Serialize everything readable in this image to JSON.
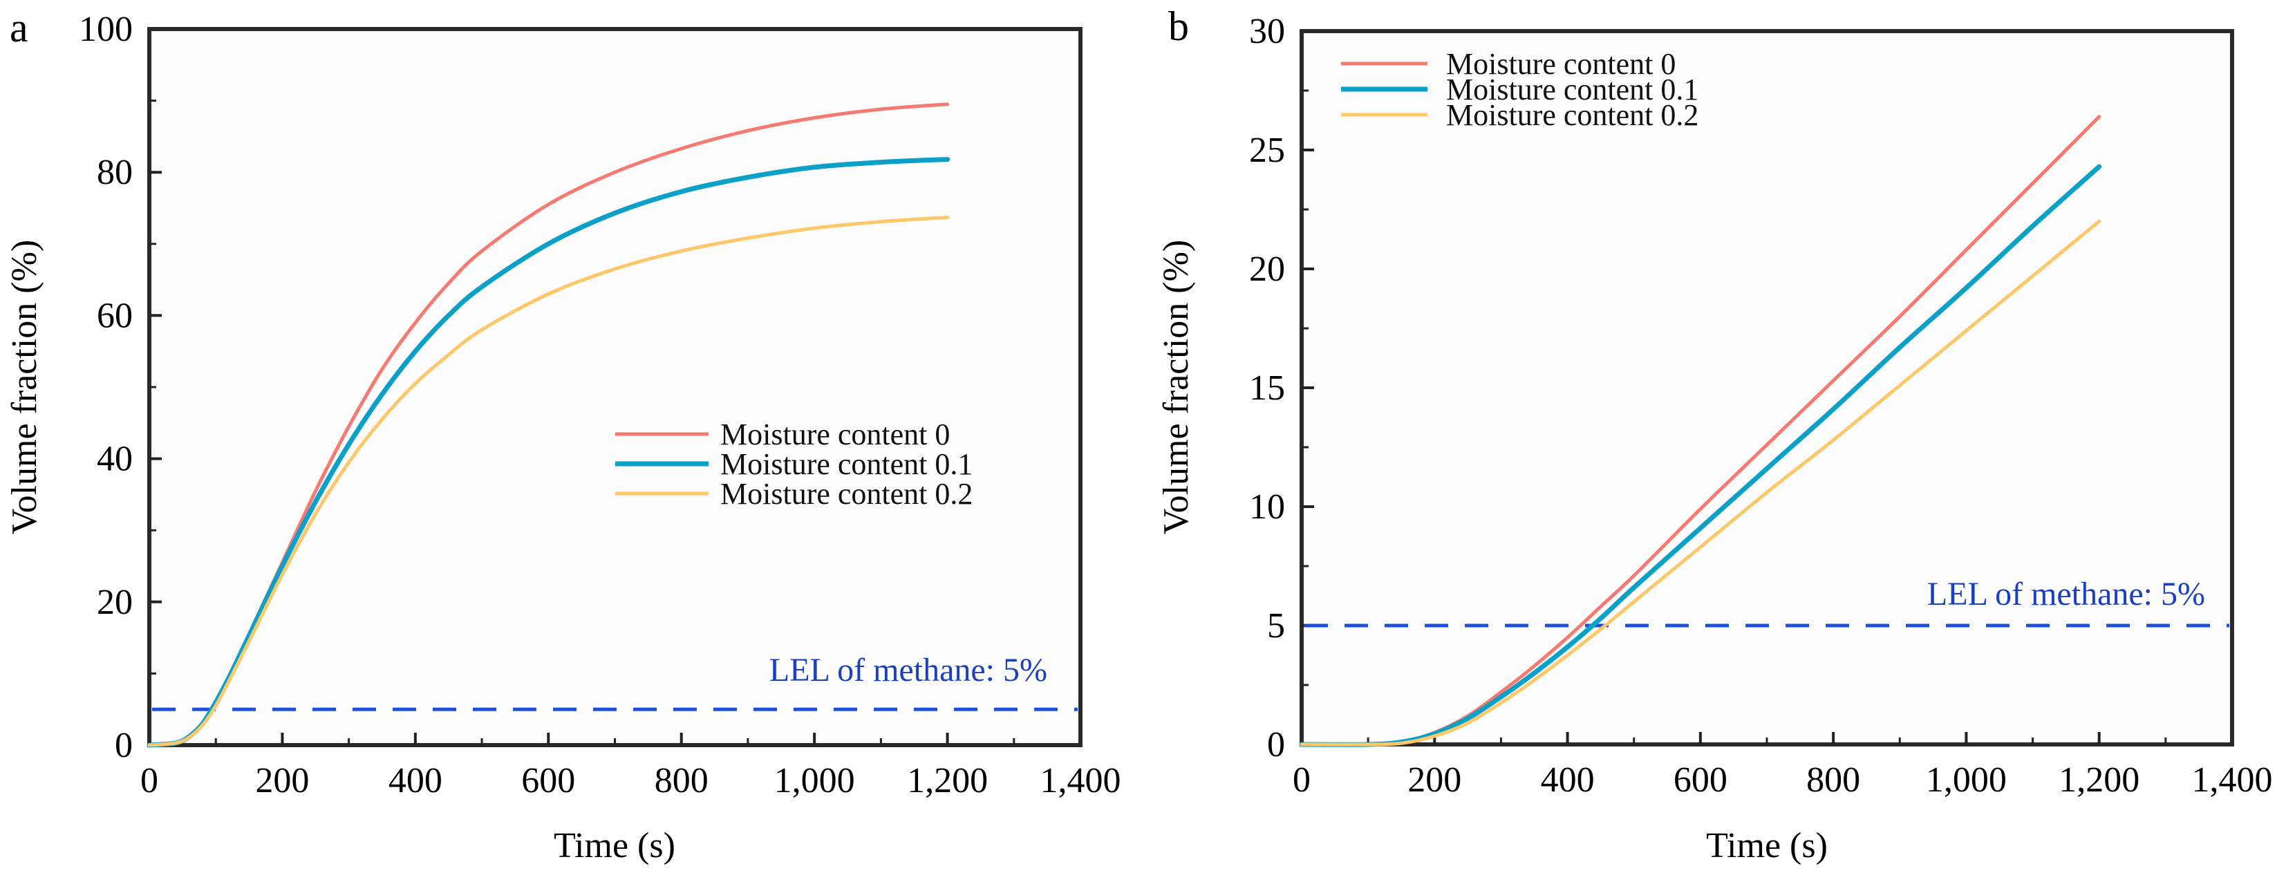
{
  "chart_data": [
    {
      "panel": "a",
      "type": "line",
      "title": "",
      "xlabel": "Time (s)",
      "ylabel": "Volume fraction (%)",
      "xlim": [
        0,
        1400
      ],
      "ylim": [
        0,
        100
      ],
      "xticks": [
        0,
        200,
        400,
        600,
        800,
        1000,
        1200,
        1400
      ],
      "xtick_labels": [
        "0",
        "200",
        "400",
        "600",
        "800",
        "1,000",
        "1,200",
        "1,400"
      ],
      "yticks": [
        0,
        20,
        40,
        60,
        80,
        100
      ],
      "ytick_labels": [
        "0",
        "20",
        "40",
        "60",
        "80",
        "100"
      ],
      "grid": false,
      "legend_position": "center-right",
      "x": [
        0,
        40,
        60,
        80,
        100,
        120,
        150,
        200,
        250,
        300,
        350,
        400,
        450,
        500,
        600,
        700,
        800,
        900,
        1000,
        1100,
        1200
      ],
      "series": [
        {
          "name": "Moisture content 0",
          "color": "#f47a72",
          "values": [
            0,
            0.3,
            1.2,
            3.0,
            6.0,
            9.5,
            15.5,
            25.5,
            35.5,
            44.5,
            52.5,
            59.0,
            64.5,
            69.0,
            75.5,
            80.0,
            83.3,
            85.8,
            87.6,
            88.8,
            89.5
          ]
        },
        {
          "name": "Moisture content 0.1",
          "color": "#0aa0c8",
          "values": [
            0,
            0.3,
            1.2,
            3.0,
            6.0,
            9.5,
            15.3,
            25.0,
            34.0,
            42.0,
            49.0,
            55.0,
            60.0,
            64.0,
            70.0,
            74.3,
            77.3,
            79.3,
            80.7,
            81.4,
            81.8
          ]
        },
        {
          "name": "Moisture content 0.2",
          "color": "#fdc86a",
          "values": [
            0,
            0.3,
            1.1,
            2.8,
            5.5,
            9.0,
            14.5,
            23.8,
            32.3,
            39.5,
            45.5,
            50.5,
            54.5,
            58.0,
            63.0,
            66.5,
            69.0,
            70.8,
            72.2,
            73.1,
            73.7
          ]
        }
      ],
      "annotations": [
        {
          "type": "hline",
          "y": 5,
          "style": "dashed",
          "color": "#1f4fd8",
          "label": "LEL of methane: 5%",
          "label_color": "#1a3fc0"
        }
      ]
    },
    {
      "panel": "b",
      "type": "line",
      "title": "",
      "xlabel": "Time (s)",
      "ylabel": "Volume fraction (%)",
      "xlim": [
        0,
        1400
      ],
      "ylim": [
        0,
        30
      ],
      "xticks": [
        0,
        200,
        400,
        600,
        800,
        1000,
        1200,
        1400
      ],
      "xtick_labels": [
        "0",
        "200",
        "400",
        "600",
        "800",
        "1,000",
        "1,200",
        "1,400"
      ],
      "yticks": [
        0,
        5,
        10,
        15,
        20,
        25,
        30
      ],
      "ytick_labels": [
        "0",
        "5",
        "10",
        "15",
        "20",
        "25",
        "30"
      ],
      "grid": false,
      "legend_position": "top-left",
      "x": [
        0,
        100,
        150,
        200,
        250,
        300,
        350,
        400,
        450,
        500,
        600,
        700,
        800,
        900,
        1000,
        1100,
        1200
      ],
      "series": [
        {
          "name": "Moisture content 0",
          "color": "#f47a72",
          "values": [
            0,
            0,
            0.1,
            0.5,
            1.2,
            2.2,
            3.3,
            4.5,
            5.8,
            7.1,
            9.9,
            12.6,
            15.3,
            18.0,
            20.8,
            23.6,
            26.4
          ]
        },
        {
          "name": "Moisture content 0.1",
          "color": "#0aa0c8",
          "values": [
            0,
            0,
            0.1,
            0.45,
            1.1,
            2.0,
            3.0,
            4.1,
            5.3,
            6.6,
            9.1,
            11.6,
            14.1,
            16.7,
            19.2,
            21.8,
            24.3
          ]
        },
        {
          "name": "Moisture content 0.2",
          "color": "#fdc86a",
          "values": [
            0,
            0,
            0.05,
            0.35,
            0.9,
            1.75,
            2.7,
            3.75,
            4.85,
            6.0,
            8.3,
            10.6,
            12.8,
            15.1,
            17.4,
            19.7,
            22.0
          ]
        }
      ],
      "annotations": [
        {
          "type": "hline",
          "y": 5,
          "style": "dashed",
          "color": "#1f4fd8",
          "label": "LEL of methane: 5%",
          "label_color": "#1a3fc0"
        }
      ]
    }
  ]
}
